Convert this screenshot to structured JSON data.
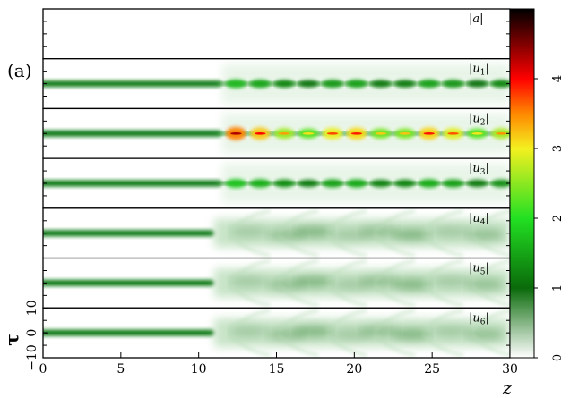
{
  "figure": {
    "panel_label": "(a)"
  },
  "chart_data": {
    "type": "heatmap",
    "x": {
      "label": "z",
      "range": [
        0,
        30
      ],
      "ticks": [
        "0",
        "5",
        "10",
        "15",
        "20",
        "25",
        "30"
      ]
    },
    "y": {
      "label": "τ",
      "range": [
        -10,
        10
      ],
      "ticks": [
        "−10",
        "0",
        "10"
      ]
    },
    "colorbar": {
      "range": [
        0,
        5
      ],
      "ticks": [
        "0",
        "1",
        "2",
        "3",
        "4"
      ],
      "colors": [
        "#ffffff",
        "#0a6a0a",
        "#22e022",
        "#f4f020",
        "#ff8800",
        "#ff0000",
        "#000000"
      ]
    },
    "panels": [
      {
        "label_pre": "|",
        "label_var": "a",
        "label_sub": "",
        "label_post": "|",
        "regime": "empty"
      },
      {
        "label_pre": "|",
        "label_var": "u",
        "label_sub": "1",
        "label_post": "|",
        "regime": "pulsing",
        "onset_z": 11.5,
        "amplitude": 1.5
      },
      {
        "label_pre": "|",
        "label_var": "u",
        "label_sub": "2",
        "label_post": "|",
        "regime": "pulsing",
        "onset_z": 11.5,
        "amplitude": 3.2
      },
      {
        "label_pre": "|",
        "label_var": "u",
        "label_sub": "3",
        "label_post": "|",
        "regime": "pulsing",
        "onset_z": 11.5,
        "amplitude": 1.6
      },
      {
        "label_pre": "|",
        "label_var": "u",
        "label_sub": "4",
        "label_post": "|",
        "regime": "diffuse",
        "onset_z": 11.0,
        "amplitude": 0.9
      },
      {
        "label_pre": "|",
        "label_var": "u",
        "label_sub": "5",
        "label_post": "|",
        "regime": "diffuse",
        "onset_z": 11.0,
        "amplitude": 0.9
      },
      {
        "label_pre": "|",
        "label_var": "u",
        "label_sub": "6",
        "label_post": "|",
        "regime": "diffuse",
        "onset_z": 11.0,
        "amplitude": 0.9
      }
    ]
  }
}
